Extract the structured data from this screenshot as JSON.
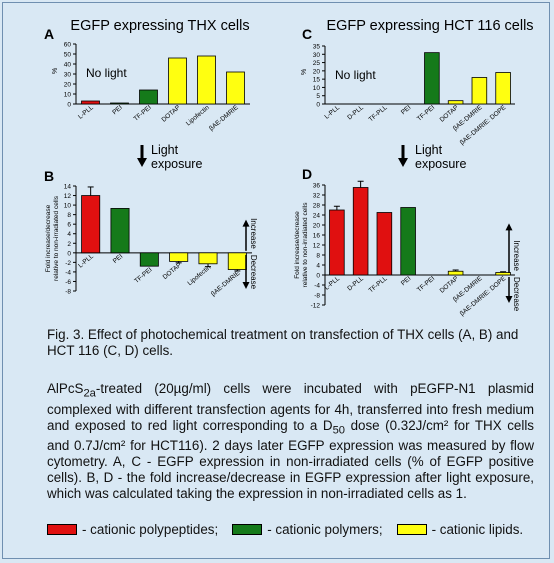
{
  "colors": {
    "cationic_polypeptides": "#e01010",
    "cationic_polymers": "#157a1a",
    "cationic_lipids": "#ffff10",
    "background": "#d9e8f4"
  },
  "panel_titles": {
    "left": "EGFP expressing THX cells",
    "right": "EGFP expressing HCT 116 cells"
  },
  "arrow_label": [
    "Light",
    "exposure"
  ],
  "chart_data": [
    {
      "panel": "A",
      "type": "bar",
      "categories": [
        "L-PLL",
        "PEI",
        "TF-PEI",
        "DOTAP",
        "Lipofectin",
        "βAE-DMRIE"
      ],
      "values": [
        3,
        1,
        14,
        46,
        48,
        32
      ],
      "classes": [
        "polypeptide",
        "polymer",
        "polymer",
        "lipid",
        "lipid",
        "lipid"
      ],
      "ylabel": "%",
      "yticks": [
        0,
        10,
        20,
        30,
        40,
        50,
        60
      ],
      "ylim": [
        0,
        60
      ],
      "annotation": "No light"
    },
    {
      "panel": "B",
      "type": "bar",
      "categories": [
        "L-PLL",
        "PEI",
        "TF-PEI",
        "DOTAP",
        "Lipofectin",
        "βAE-DMRIE"
      ],
      "values": [
        12,
        9.3,
        -2.8,
        -1.8,
        -2.3,
        -3.5
      ],
      "errors": [
        1.8,
        0,
        0,
        0.3,
        0.6,
        0.3
      ],
      "classes": [
        "polypeptide",
        "polymer",
        "polymer",
        "lipid",
        "lipid",
        "lipid"
      ],
      "ylabel": "Fold increase/decrease relative to non-irradiated cells",
      "yticks": [
        -8,
        -6,
        -4,
        -2,
        0,
        2,
        4,
        6,
        8,
        10,
        12,
        14
      ],
      "ylim": [
        -8,
        14
      ],
      "side_labels": [
        "Increase",
        "Decrease"
      ]
    },
    {
      "panel": "C",
      "type": "bar",
      "categories": [
        "L-PLL",
        "D-PLL",
        "TF-PLL",
        "PEI",
        "TF-PEI",
        "DOTAP",
        "βAE-DMRIE",
        "βAE-DMRIE: DOPE"
      ],
      "values": [
        0,
        0,
        0,
        0,
        31,
        2,
        16,
        19
      ],
      "classes": [
        "polypeptide",
        "polypeptide",
        "polypeptide",
        "polymer",
        "polymer",
        "lipid",
        "lipid",
        "lipid"
      ],
      "ylabel": "%",
      "yticks": [
        0,
        5,
        10,
        15,
        20,
        25,
        30,
        35
      ],
      "ylim": [
        0,
        35
      ],
      "annotation": "No light"
    },
    {
      "panel": "D",
      "type": "bar",
      "categories": [
        "L-PLL",
        "D-PLL",
        "TF-PLL",
        "PEI",
        "TF-PEI",
        "DOTAP",
        "βAE-DMRIE",
        "βAE-DMRIE: DOPE"
      ],
      "values": [
        26,
        35,
        25,
        27,
        0,
        1.5,
        0,
        1
      ],
      "errors": [
        1.5,
        2.5,
        0,
        0,
        0,
        0.5,
        0,
        0.3
      ],
      "classes": [
        "polypeptide",
        "polypeptide",
        "polypeptide",
        "polymer",
        "polymer",
        "lipid",
        "lipid",
        "lipid"
      ],
      "ylabel": "Fold increase/decrease relative to non-irradiated cells",
      "yticks": [
        -12,
        -8,
        -4,
        0,
        4,
        8,
        12,
        16,
        20,
        24,
        28,
        32,
        36
      ],
      "ylim": [
        -12,
        36
      ],
      "side_labels": [
        "Increase",
        "Decrease"
      ]
    }
  ],
  "caption": {
    "title": "Fig. 3. Effect of photochemical treatment on transfection of THX cells (A, B) and HCT 116 (C, D) cells.",
    "body": "AlPcS2a-treated (20µg/ml) cells were incubated with pEGFP-N1 plasmid complexed with different transfection agents for 4h, transferred into fresh medium and exposed to red light corresponding to a D50 dose (0.32J/cm² for THX cells and 0.7J/cm² for HCT116). 2 days later EGFP expression was measured by flow cytometry. A, C - EGFP expression in non-irradiated cells (% of EGFP positive cells). B, D - the fold increase/decrease in EGFP expression after light exposure, which was calculated taking the expression in non-irradiated cells as 1."
  },
  "legend": [
    {
      "label": "- cationic polypeptides;",
      "color": "#e01010"
    },
    {
      "label": "- cationic polymers;",
      "color": "#157a1a"
    },
    {
      "label": "- cationic lipids.",
      "color": "#ffff10"
    }
  ]
}
